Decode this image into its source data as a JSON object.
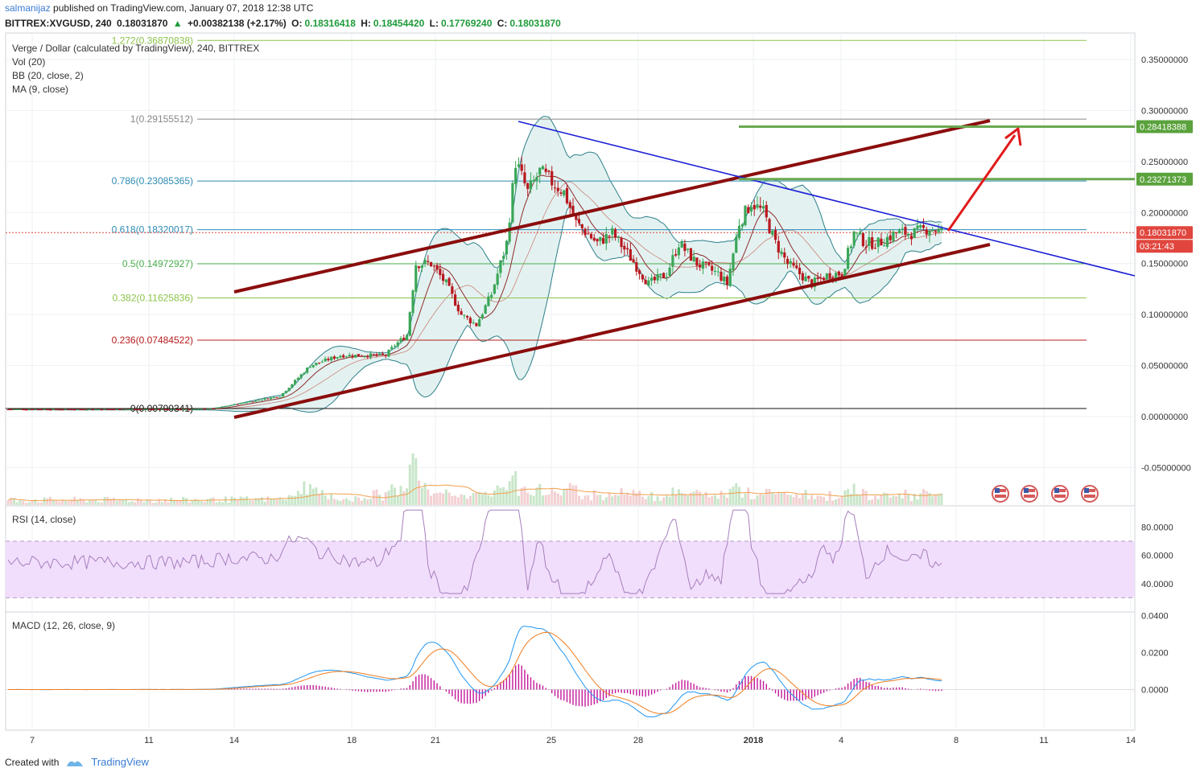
{
  "header": {
    "author": "salmanijaz",
    "published_text": "published on TradingView.com, January 07, 2018 12:38 UTC",
    "symbol": "BITTREX:XVGUSD, 240",
    "last": "0.18031870",
    "change_arrow": "▲",
    "change": "+0.00382138 (+2.17%)",
    "o_label": "O:",
    "o": "0.18316418",
    "h_label": "H:",
    "h": "0.18454420",
    "l_label": "L:",
    "l": "0.17769240",
    "c_label": "C:",
    "c": "0.18031870"
  },
  "legend": {
    "title": "Verge / Dollar (calculated by TradingView), 240, BITTREX",
    "vol": "Vol (20)",
    "bb": "BB (20, close, 2)",
    "ma": "MA (9, close)",
    "rsi": "RSI (14, close)",
    "macd": "MACD (12, 26, close, 9)"
  },
  "footer": {
    "created_with": "Created with",
    "brand": "TradingView"
  },
  "colors": {
    "up": "#3aa657",
    "down": "#b8181f",
    "channel": "#8b0d0d",
    "trend": "#1d1fd6",
    "target": "#e01a1a",
    "fib_green": "#8bc34a",
    "fib_teal": "#2e8bb4",
    "bb_fill": "#dcefee",
    "bb_line": "#2e7f8a",
    "rsi_fill": "#f1defc",
    "macd_line": "#2196f3",
    "signal_line": "#f07d1f",
    "hist": "#c2189a"
  },
  "chart_data": {
    "type": "candlestick",
    "title": "Verge / Dollar (calculated by TradingView), 240, BITTREX",
    "x_ticks": [
      "7",
      "11",
      "14",
      "18",
      "21",
      "25",
      "28",
      "2018",
      "4",
      "8",
      "11",
      "14"
    ],
    "price_axis": {
      "ticks": [
        "0.35000000",
        "0.30000000",
        "0.25000000",
        "0.20000000",
        "0.15000000",
        "0.10000000",
        "0.05000000",
        "0.00000000",
        "-0.05000000"
      ],
      "ylim": [
        -0.0875,
        0.376
      ]
    },
    "price_badges": [
      {
        "text": "0.28418388",
        "color": "#5aa23c"
      },
      {
        "text": "0.23271373",
        "color": "#5aa23c"
      },
      {
        "text": "0.18031870",
        "color": "#e0463e"
      },
      {
        "text": "03:21:43",
        "color": "#e0463e"
      }
    ],
    "fibonacci": [
      {
        "label": "1.272(0.36870838)",
        "value": 0.36870838,
        "color": "#8bc34a"
      },
      {
        "label": "1(0.29155512)",
        "value": 0.29155512,
        "color": "#888888"
      },
      {
        "label": "0.786(0.23085365)",
        "value": 0.23085365,
        "color": "#2e8bb4"
      },
      {
        "label": "0.618(0.18320017)",
        "value": 0.18320017,
        "color": "#2e8bb4"
      },
      {
        "label": "0.5(0.14972927)",
        "value": 0.14972927,
        "color": "#4caf50"
      },
      {
        "label": "0.382(0.11625836)",
        "value": 0.11625836,
        "color": "#8bc34a"
      },
      {
        "label": "0.236(0.07484522)",
        "value": 0.07484522,
        "color": "#b71c1c"
      },
      {
        "label": "0(0.00790341)",
        "value": 0.00790341,
        "color": "#111111"
      }
    ],
    "resistance_targets": [
      0.28418388,
      0.23271373
    ],
    "candles_x": [
      0,
      1,
      2,
      3,
      4,
      5,
      6,
      7,
      8,
      9,
      10,
      11,
      12,
      13,
      14,
      15,
      16,
      17,
      18,
      19,
      20,
      21,
      22,
      23,
      24,
      25,
      26,
      27,
      28,
      29,
      30,
      31,
      32,
      33,
      34,
      35,
      36,
      37,
      38,
      39,
      40,
      41,
      42,
      43,
      44,
      45,
      46,
      47,
      48,
      49,
      50,
      51,
      52,
      53,
      54,
      55,
      56,
      57,
      58,
      59,
      60,
      61,
      62,
      63,
      64,
      65,
      66,
      67,
      68,
      69,
      70,
      71,
      72,
      73,
      74,
      75,
      76,
      77,
      78,
      79,
      80,
      81,
      82,
      83,
      84,
      85,
      86,
      87,
      88,
      89,
      90,
      91,
      92,
      93,
      94,
      95,
      96,
      97,
      98,
      99,
      100,
      101,
      102,
      103,
      104,
      105,
      106,
      107,
      108,
      109,
      110,
      111,
      112,
      113,
      114,
      115,
      116,
      117,
      118,
      119,
      120,
      121,
      122,
      123,
      124,
      125,
      126,
      127,
      128,
      129,
      130,
      131,
      132,
      133,
      134,
      135,
      136,
      137,
      138,
      139,
      140,
      141,
      142,
      143,
      144,
      145,
      146,
      147,
      148,
      149,
      150,
      151,
      152,
      153,
      154,
      155,
      156,
      157,
      158,
      159,
      160,
      161,
      162,
      163,
      164,
      165,
      166,
      167,
      168,
      169,
      170,
      171,
      172,
      173,
      174,
      175,
      176,
      177,
      178,
      179,
      180,
      181,
      182,
      183,
      184,
      185,
      186,
      187,
      188,
      189,
      190,
      191,
      192,
      193,
      194,
      195,
      196,
      197,
      198,
      199,
      200,
      201,
      202,
      203,
      204,
      205,
      206,
      207,
      208,
      209,
      210,
      211,
      212,
      213,
      214,
      215,
      216,
      217,
      218,
      219,
      220,
      221,
      222,
      223,
      224,
      225,
      226,
      227,
      228,
      229,
      230,
      231,
      232,
      233,
      234,
      235,
      236,
      237,
      238,
      239,
      240,
      241,
      242,
      243,
      244,
      245,
      246,
      247,
      248,
      249,
      250,
      251,
      252,
      253,
      254,
      255,
      256,
      257,
      258,
      259,
      260,
      261,
      262,
      263,
      264,
      265,
      266,
      267,
      268,
      269,
      270,
      271,
      272,
      273,
      274,
      275,
      276,
      277,
      278,
      279,
      280,
      281,
      282,
      283,
      284,
      285,
      286,
      287,
      288,
      289,
      290,
      291,
      292,
      293,
      294,
      295,
      296,
      297,
      298,
      299,
      300,
      301,
      302,
      303,
      304,
      305,
      306,
      307,
      308,
      309,
      310,
      311,
      312,
      313,
      314,
      315,
      316,
      317,
      318,
      319,
      320,
      321,
      322,
      323,
      324,
      325,
      326,
      327,
      328,
      329,
      330,
      331,
      332,
      333,
      334,
      335,
      336,
      337,
      338,
      339,
      340,
      341,
      342,
      343,
      344,
      345,
      346,
      347,
      348,
      349,
      350,
      351,
      352,
      353,
      354,
      355,
      356,
      357,
      358,
      359,
      360,
      361,
      362,
      363,
      364,
      365,
      366,
      367,
      368,
      369,
      370
    ],
    "closes_anchor": [
      [
        0,
        0.007
      ],
      [
        60,
        0.007
      ],
      [
        68,
        0.008
      ],
      [
        75,
        0.012
      ],
      [
        90,
        0.02
      ],
      [
        95,
        0.035
      ],
      [
        100,
        0.05
      ],
      [
        110,
        0.06
      ],
      [
        125,
        0.06
      ],
      [
        128,
        0.07
      ],
      [
        132,
        0.08
      ],
      [
        135,
        0.15
      ],
      [
        140,
        0.15
      ],
      [
        145,
        0.13
      ],
      [
        150,
        0.1
      ],
      [
        155,
        0.09
      ],
      [
        160,
        0.12
      ],
      [
        165,
        0.17
      ],
      [
        168,
        0.25
      ],
      [
        172,
        0.22
      ],
      [
        176,
        0.24
      ],
      [
        180,
        0.23
      ],
      [
        184,
        0.22
      ],
      [
        188,
        0.19
      ],
      [
        195,
        0.17
      ],
      [
        200,
        0.18
      ],
      [
        205,
        0.16
      ],
      [
        212,
        0.13
      ],
      [
        218,
        0.14
      ],
      [
        222,
        0.17
      ],
      [
        228,
        0.15
      ],
      [
        235,
        0.14
      ],
      [
        238,
        0.13
      ],
      [
        242,
        0.19
      ],
      [
        246,
        0.21
      ],
      [
        250,
        0.2
      ],
      [
        254,
        0.17
      ],
      [
        258,
        0.15
      ],
      [
        262,
        0.14
      ],
      [
        266,
        0.13
      ],
      [
        272,
        0.14
      ],
      [
        276,
        0.14
      ],
      [
        280,
        0.18
      ],
      [
        284,
        0.17
      ],
      [
        288,
        0.17
      ],
      [
        294,
        0.18
      ],
      [
        300,
        0.18
      ],
      [
        305,
        0.185
      ],
      [
        310,
        0.18
      ]
    ],
    "rsi": {
      "ylim": [
        20,
        95
      ],
      "bands": [
        30,
        70
      ],
      "ticks": [
        "80.0000",
        "60.0000",
        "40.0000"
      ]
    },
    "macd": {
      "ylim": [
        -0.022,
        0.042
      ],
      "ticks": [
        "0.0400",
        "0.0200",
        "0.0000"
      ]
    }
  }
}
